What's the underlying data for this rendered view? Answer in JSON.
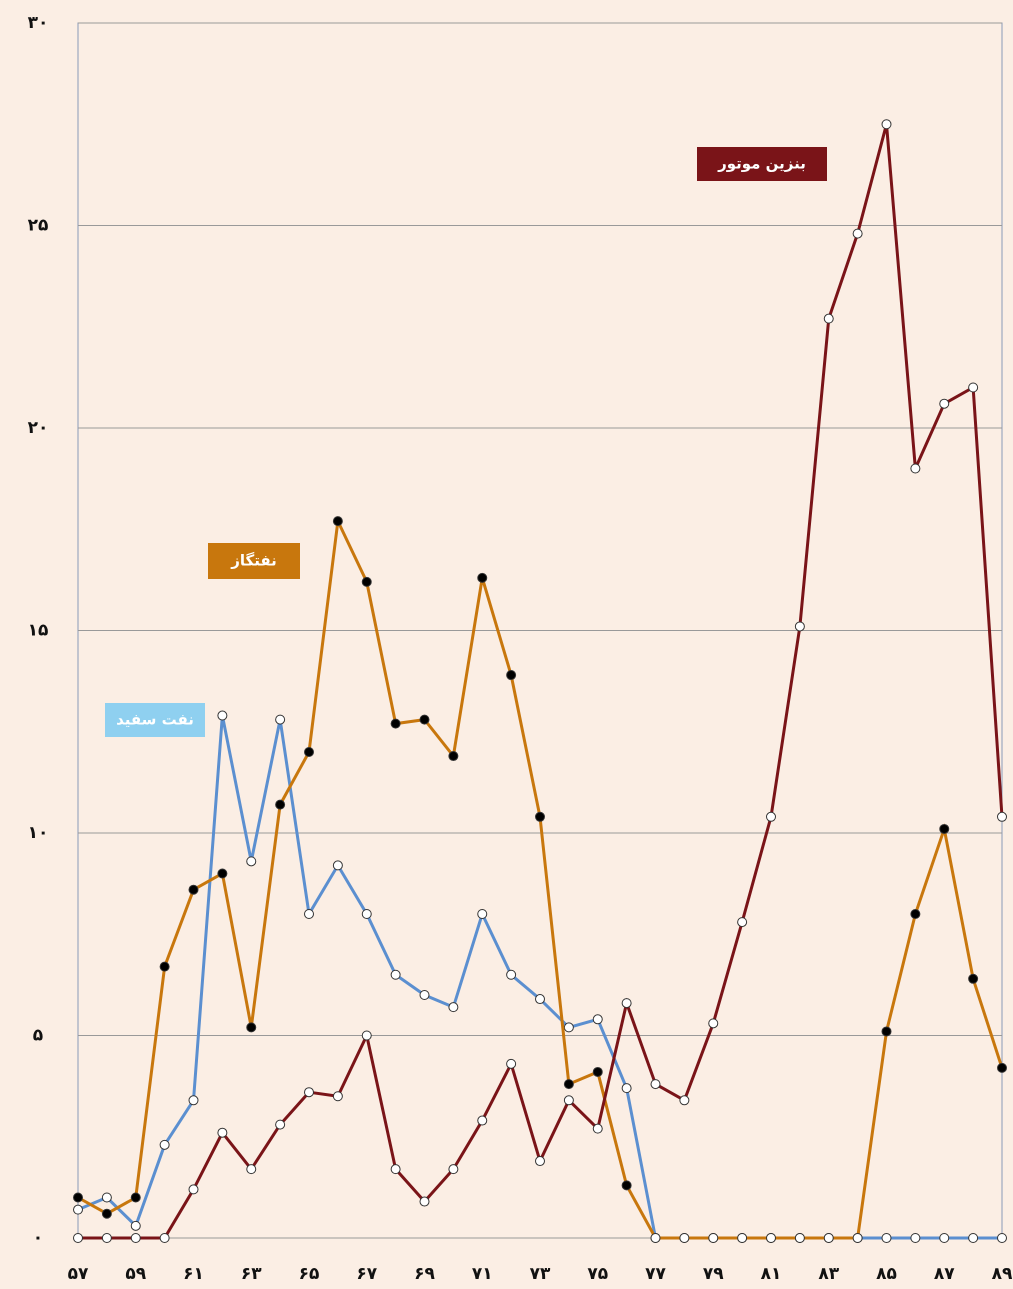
{
  "chart_data": {
    "type": "line",
    "categories": [
      "۵۷",
      null,
      "۵۹",
      null,
      "۶۱",
      null,
      "۶۳",
      null,
      "۶۵",
      null,
      "۶۷",
      null,
      "۶۹",
      null,
      "۷۱",
      null,
      "۷۳",
      null,
      "۷۵",
      null,
      "۷۷",
      null,
      "۷۹",
      null,
      "۸۱",
      null,
      "۸۳",
      null,
      "۸۵",
      null,
      "۸۷",
      null,
      "۸۹"
    ],
    "series": [
      {
        "name": "نفت سفید",
        "color": "#5b8fd0",
        "label_color": "#8fd0f0",
        "marker_fill": "#ffffff",
        "values": [
          0.7,
          1.0,
          0.3,
          2.3,
          3.4,
          12.9,
          9.3,
          12.8,
          8.0,
          9.2,
          8.0,
          6.5,
          6.0,
          5.7,
          8.0,
          6.5,
          5.9,
          5.2,
          5.4,
          3.7,
          0,
          0,
          0,
          0,
          0,
          0,
          0,
          0,
          0,
          0,
          0,
          0,
          0
        ]
      },
      {
        "name": "نفتگاز",
        "color": "#c8770d",
        "label_color": "#c8770d",
        "marker_fill": "#000000",
        "values": [
          1.0,
          0.6,
          1.0,
          6.7,
          8.6,
          9.0,
          5.2,
          10.7,
          12.0,
          17.7,
          16.2,
          12.7,
          12.8,
          11.9,
          16.3,
          13.9,
          10.4,
          3.8,
          4.1,
          1.3,
          0,
          0,
          0,
          0,
          0,
          0,
          0,
          0,
          5.1,
          8.0,
          10.1,
          6.4,
          4.2
        ]
      },
      {
        "name": "بنزین موتور",
        "color": "#7a1418",
        "label_color": "#7a1418",
        "marker_fill": "#ffffff",
        "values": [
          0,
          0,
          0,
          0,
          1.2,
          2.6,
          1.7,
          2.8,
          3.6,
          3.5,
          5.0,
          1.7,
          0.9,
          1.7,
          2.9,
          4.3,
          1.9,
          3.4,
          2.7,
          5.8,
          3.8,
          3.4,
          5.3,
          7.8,
          10.4,
          15.1,
          22.7,
          24.8,
          27.5,
          19.0,
          20.6,
          21.0,
          10.4
        ]
      }
    ],
    "ylim": [
      0,
      30
    ],
    "yticks": [
      {
        "value": 0,
        "label": "۰"
      },
      {
        "value": 5,
        "label": "۵"
      },
      {
        "value": 10,
        "label": "۱۰"
      },
      {
        "value": 15,
        "label": "۱۵"
      },
      {
        "value": 20,
        "label": "۲۰"
      },
      {
        "value": 25,
        "label": "۲۵"
      },
      {
        "value": 30,
        "label": "۳۰"
      }
    ],
    "grid": true
  }
}
